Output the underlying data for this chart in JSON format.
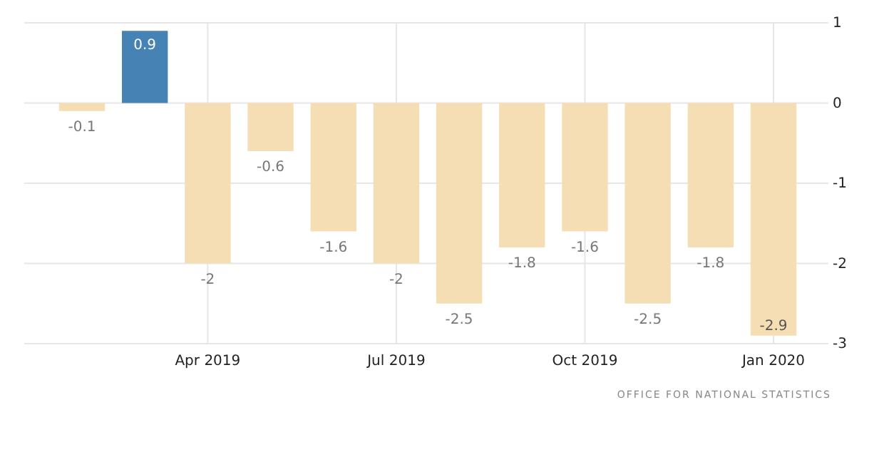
{
  "chart_data": {
    "type": "bar",
    "categories": [
      null,
      null,
      "Apr 2019",
      null,
      null,
      "Jul 2019",
      null,
      null,
      "Oct 2019",
      null,
      null,
      "Jan 2020"
    ],
    "values": [
      -0.1,
      0.9,
      -2,
      -0.6,
      -1.6,
      -2,
      -2.5,
      -1.8,
      -1.6,
      -2.5,
      -1.8,
      -2.9
    ],
    "colors": [
      "#f5deb3",
      "#4682b4",
      "#f5deb3",
      "#f5deb3",
      "#f5deb3",
      "#f5deb3",
      "#f5deb3",
      "#f5deb3",
      "#f5deb3",
      "#f5deb3",
      "#f5deb3",
      "#f5deb3"
    ],
    "ylim": [
      -3,
      1
    ],
    "yticks": [
      -3,
      -2,
      -1,
      0,
      1
    ],
    "grid": true,
    "data_labels": true,
    "annotations": [
      "OFFICE FOR NATIONAL STATISTICS"
    ]
  }
}
